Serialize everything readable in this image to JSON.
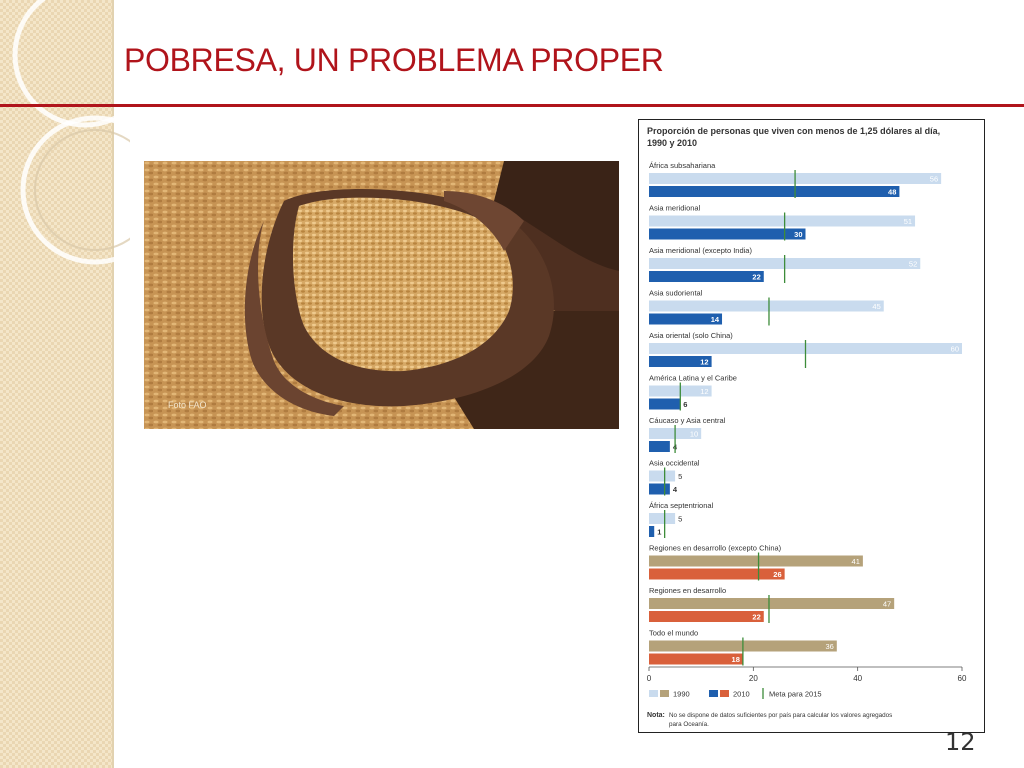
{
  "slide": {
    "title": "POBRESA, UN PROBLEMA PROPER",
    "page_number": "12",
    "photo_credit": "Foto FAO"
  },
  "colors": {
    "title": "#b0141b",
    "light_blue": "#c9dbee",
    "dark_blue": "#1f5fae",
    "tan": "#b5a27a",
    "orange": "#d9603b",
    "goal_line": "#3d8c3a"
  },
  "chart_data": {
    "type": "bar",
    "title_lines": [
      "Proporción de personas que viven con menos de 1,25 dólares al día,",
      "1990 y 2010"
    ],
    "xlim": [
      0,
      60
    ],
    "xticks": [
      0,
      20,
      40,
      60
    ],
    "legend": {
      "placement": "bottom",
      "items": [
        "1990",
        "2010",
        "Meta para 2015"
      ]
    },
    "categories": [
      {
        "name": "África subsahariana",
        "v1990": 56,
        "v2010": 48,
        "goal": 28,
        "group": "region"
      },
      {
        "name": "Asia meridional",
        "v1990": 51,
        "v2010": 30,
        "goal": 26,
        "group": "region"
      },
      {
        "name": "Asia meridional (excepto India)",
        "v1990": 52,
        "v2010": 22,
        "goal": 26,
        "group": "region"
      },
      {
        "name": "Asia sudoriental",
        "v1990": 45,
        "v2010": 14,
        "goal": 23,
        "group": "region"
      },
      {
        "name": "Asia oriental (solo China)",
        "v1990": 60,
        "v2010": 12,
        "goal": 30,
        "group": "region"
      },
      {
        "name": "América Latina y el Caribe",
        "v1990": 12,
        "v2010": 6,
        "goal": 6,
        "group": "region"
      },
      {
        "name": "Cáucaso y Asia central",
        "v1990": 10,
        "v2010": 4,
        "goal": 5,
        "group": "region"
      },
      {
        "name": "Asia occidental",
        "v1990": 5,
        "v2010": 4,
        "goal": 3,
        "group": "region"
      },
      {
        "name": "África septentrional",
        "v1990": 5,
        "v2010": 1,
        "goal": 3,
        "group": "region"
      },
      {
        "name": "Regiones en desarrollo (excepto China)",
        "v1990": 41,
        "v2010": 26,
        "goal": 21,
        "group": "aggregate"
      },
      {
        "name": "Regiones en desarrollo",
        "v1990": 47,
        "v2010": 22,
        "goal": 23,
        "group": "aggregate"
      },
      {
        "name": "Todo el mundo",
        "v1990": 36,
        "v2010": 18,
        "goal": 18,
        "group": "aggregate"
      }
    ],
    "note_label": "Nota:",
    "note_lines": [
      "No se dispone de datos suficientes por país para calcular los valores agregados",
      "para Oceanía."
    ]
  }
}
